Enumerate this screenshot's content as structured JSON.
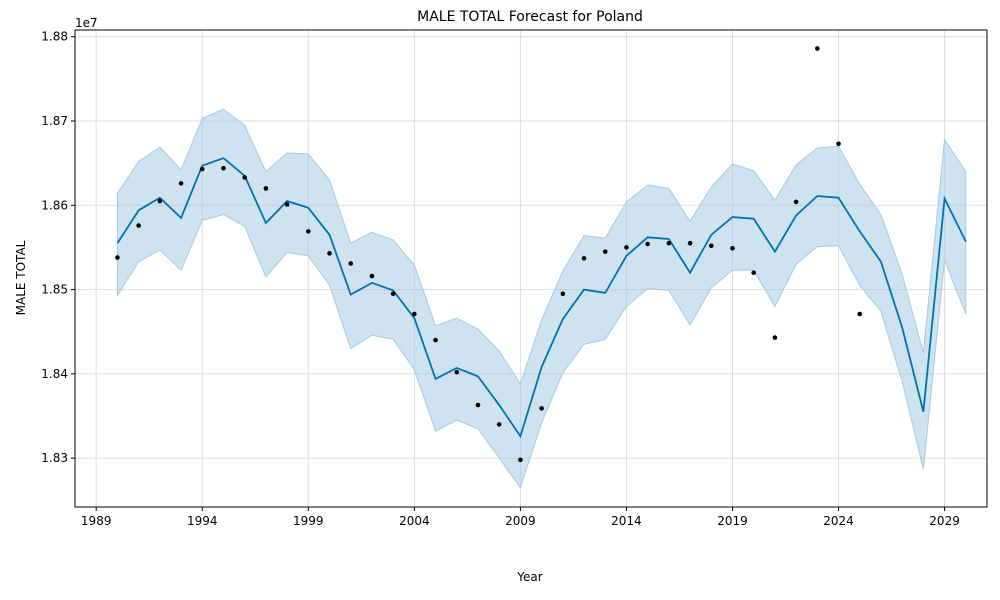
{
  "chart_data": {
    "type": "line",
    "title": "MALE TOTAL Forecast for Poland",
    "xlabel": "Year",
    "ylabel": "MALE TOTAL",
    "y_scale_label": "1e7",
    "x_ticks": [
      1989,
      1994,
      1999,
      2004,
      2009,
      2014,
      2019,
      2024,
      2029
    ],
    "y_ticks": [
      1.83,
      1.84,
      1.85,
      1.86,
      1.87,
      1.88
    ],
    "xlim": [
      1988.0,
      2031.0
    ],
    "ylim": [
      1.8242,
      1.8808
    ],
    "grid": true,
    "colors": {
      "forecast": "#0072b2",
      "band": "#a6cbe3",
      "observed": "#000000"
    },
    "forecast": {
      "x": [
        1990,
        1991,
        1992,
        1993,
        1994,
        1995,
        1996,
        1997,
        1998,
        1999,
        2000,
        2001,
        2002,
        2003,
        2004,
        2005,
        2006,
        2007,
        2008,
        2009,
        2010,
        2011,
        2012,
        2013,
        2014,
        2015,
        2016,
        2017,
        2018,
        2019,
        2020,
        2021,
        2022,
        2023,
        2024,
        2025,
        2026,
        2027,
        2028,
        2029,
        2030
      ],
      "yhat": [
        1.8555,
        1.8594,
        1.8609,
        1.8585,
        1.8647,
        1.8656,
        1.8635,
        1.8579,
        1.8605,
        1.8597,
        1.8565,
        1.8494,
        1.8508,
        1.8499,
        1.8466,
        1.8394,
        1.8407,
        1.8397,
        1.8363,
        1.8326,
        1.8408,
        1.8465,
        1.85,
        1.8496,
        1.854,
        1.8562,
        1.856,
        1.852,
        1.8565,
        1.8586,
        1.8584,
        1.8545,
        1.8588,
        1.8611,
        1.8609,
        1.8569,
        1.8533,
        1.8455,
        1.8355,
        1.8608,
        1.8557
      ],
      "upper": [
        1.8614,
        1.8652,
        1.8669,
        1.8642,
        1.8703,
        1.8714,
        1.8695,
        1.864,
        1.8662,
        1.8661,
        1.863,
        1.8555,
        1.8568,
        1.8559,
        1.8529,
        1.8457,
        1.8466,
        1.8453,
        1.8427,
        1.8388,
        1.8464,
        1.8522,
        1.8564,
        1.8561,
        1.8604,
        1.8624,
        1.862,
        1.8581,
        1.8622,
        1.8649,
        1.8641,
        1.8606,
        1.8648,
        1.8668,
        1.867,
        1.8625,
        1.8589,
        1.8518,
        1.8425,
        1.8678,
        1.864
      ],
      "lower": [
        1.8493,
        1.8533,
        1.8547,
        1.8523,
        1.8582,
        1.8589,
        1.8575,
        1.8515,
        1.8544,
        1.854,
        1.8505,
        1.843,
        1.8446,
        1.8441,
        1.8405,
        1.8332,
        1.8345,
        1.8335,
        1.83,
        1.8265,
        1.8342,
        1.8401,
        1.8435,
        1.8441,
        1.848,
        1.8501,
        1.8499,
        1.8458,
        1.8502,
        1.8523,
        1.8523,
        1.848,
        1.853,
        1.8551,
        1.8552,
        1.8505,
        1.8474,
        1.8391,
        1.8287,
        1.8535,
        1.8471
      ]
    },
    "observed": {
      "x": [
        1990,
        1991,
        1992,
        1993,
        1994,
        1995,
        1996,
        1997,
        1998,
        1999,
        2000,
        2001,
        2002,
        2003,
        2004,
        2005,
        2006,
        2007,
        2008,
        2009,
        2010,
        2011,
        2012,
        2013,
        2014,
        2015,
        2016,
        2017,
        2018,
        2019,
        2020,
        2021,
        2022,
        2023,
        2024,
        2025
      ],
      "y": [
        1.8538,
        1.8576,
        1.8605,
        1.8626,
        1.8643,
        1.8644,
        1.8633,
        1.862,
        1.8601,
        1.8569,
        1.8543,
        1.8531,
        1.8516,
        1.8495,
        1.8471,
        1.844,
        1.8402,
        1.8363,
        1.834,
        1.8298,
        1.8359,
        1.8495,
        1.8537,
        1.8545,
        1.855,
        1.8554,
        1.8555,
        1.8555,
        1.8552,
        1.8549,
        1.852,
        1.8443,
        1.8604,
        1.8786,
        1.8673,
        1.8471
      ]
    }
  }
}
